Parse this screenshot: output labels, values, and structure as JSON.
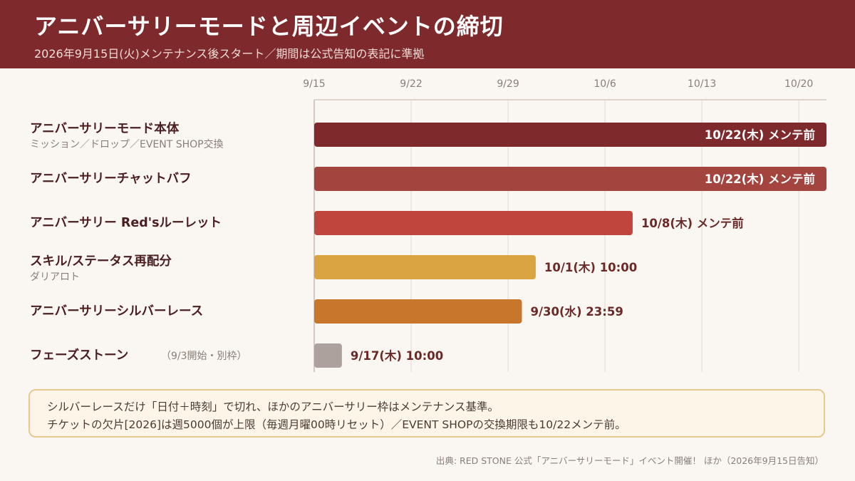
{
  "header": {
    "title": "アニバーサリーモードと周辺イベントの締切",
    "subtitle": "2026年9月15日(火)メンテナンス後スタート／期間は公式告知の表記に準拠"
  },
  "chart_data": {
    "type": "bar",
    "orientation": "horizontal",
    "x_start": "2026-09-15",
    "x_end": "2026-10-22",
    "x_ticks": [
      "9/15",
      "9/22",
      "9/29",
      "10/6",
      "10/13",
      "10/20"
    ],
    "x_tick_dates": [
      "2026-09-15",
      "2026-09-22",
      "2026-09-29",
      "2026-10-06",
      "2026-10-13",
      "2026-10-20"
    ],
    "grid": true,
    "bars": [
      {
        "label": "アニバーサリーモード本体",
        "sublabel": "ミッション／ドロップ／EVENT SHOP交換",
        "note": "",
        "start": "2026-09-15",
        "end": "2026-10-22",
        "value_label": "10/22(木) メンテ前",
        "label_inside": true,
        "color": "#7e2a2d"
      },
      {
        "label": "アニバーサリーチャットバフ",
        "sublabel": "",
        "note": "",
        "start": "2026-09-15",
        "end": "2026-10-22",
        "value_label": "10/22(木) メンテ前",
        "label_inside": true,
        "color": "#a3443e"
      },
      {
        "label": "アニバーサリー Red'sルーレット",
        "sublabel": "",
        "note": "",
        "start": "2026-09-15",
        "end": "2026-10-08",
        "value_label": "10/8(木) メンテ前",
        "label_inside": false,
        "color": "#c0453d"
      },
      {
        "label": "スキル/ステータス再配分",
        "sublabel": "ダリアロト",
        "note": "",
        "start": "2026-09-15",
        "end": "2026-10-01",
        "value_label": "10/1(木) 10:00",
        "label_inside": false,
        "color": "#d9a441"
      },
      {
        "label": "アニバーサリーシルバーレース",
        "sublabel": "",
        "note": "",
        "start": "2026-09-15",
        "end": "2026-09-30",
        "value_label": "9/30(水) 23:59",
        "label_inside": false,
        "color": "#c8762b"
      },
      {
        "label": "フェーズストーン",
        "sublabel": "",
        "note": "（9/3開始・別枠）",
        "start": "2026-09-15",
        "end": "2026-09-17",
        "value_label": "9/17(木) 10:00",
        "label_inside": false,
        "color": "#aca19c"
      }
    ]
  },
  "note": {
    "lines": [
      "シルバーレースだけ「日付＋時刻」で切れ、ほかのアニバーサリー枠はメンテナンス基準。",
      "チケットの欠片[2026]は週5000個が上限（毎週月曜00時リセット）／EVENT SHOPの交換期限も10/22メンテ前。"
    ]
  },
  "source": "出典: RED STONE 公式「アニバーサリーモード」イベント開催！ ほか（2026年9月15日告知）",
  "colors": {
    "header_bg": "#7e2a2d",
    "label_text": "#4a1e20",
    "value_text": "#6a2a28"
  }
}
